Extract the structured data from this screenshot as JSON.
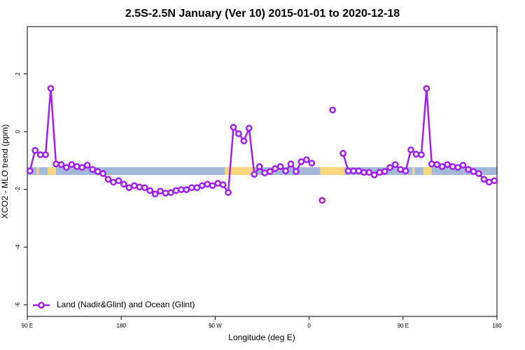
{
  "chart_data": {
    "type": "line",
    "title": "2.5S-2.5N January (Ver 10)   2015-01-01 to 2020-12-18",
    "x_label": "Longitude (deg E)",
    "y_label": "XCO2 - MLO trend (ppm)",
    "xlim": [
      90,
      540
    ],
    "ylim": [
      -6.4,
      3.64
    ],
    "xticks": [
      {
        "value": 90,
        "label": "90 E"
      },
      180,
      {
        "value": 270,
        "label": "90 W"
      },
      {
        "value": 360,
        "label": "0"
      },
      {
        "value": 450,
        "label": "90 E"
      },
      {
        "value": 540,
        "label": "180"
      }
    ],
    "yticks": [
      2,
      0,
      -2,
      -4,
      -6
    ],
    "legend": "bottom-left",
    "band": {
      "y": [
        -1.5,
        -1.23
      ],
      "segments": [
        {
          "x": [
            90,
            540
          ],
          "color": "#a3b8d8"
        },
        {
          "x": [
            99,
            101
          ],
          "color": "#fbd580"
        },
        {
          "x": [
            109.5,
            117.5
          ],
          "color": "#fbd580"
        },
        {
          "x": [
            279,
            307
          ],
          "color": "#fbd580"
        },
        {
          "x": [
            370.5,
            394
          ],
          "color": "#fbd580"
        },
        {
          "x": [
            459,
            461
          ],
          "color": "#fbd580"
        },
        {
          "x": [
            469.5,
            477.5
          ],
          "color": "#fbd580"
        }
      ]
    },
    "x": [
      92.5,
      97.5,
      102.5,
      107.5,
      112.5,
      117.5,
      122.5,
      127.5,
      132.5,
      137.5,
      142.5,
      147.5,
      152.5,
      157.5,
      162.5,
      167.5,
      172.5,
      177.5,
      182.5,
      187.5,
      192.5,
      197.5,
      202.5,
      207.5,
      212.5,
      217.5,
      222.5,
      227.5,
      232.5,
      237.5,
      242.5,
      247.5,
      252.5,
      257.5,
      262.5,
      267.5,
      272.5,
      277.5,
      282.5,
      287.5,
      292.5,
      297.5,
      302.5,
      307.5,
      312.5,
      317.5,
      322.5,
      327.5,
      332.5,
      337.5,
      342.5,
      347.5,
      352.5,
      357.5,
      362.5,
      367.5,
      372.5,
      377.5,
      382.5,
      387.5,
      392.5,
      397.5,
      402.5,
      407.5,
      412.5,
      417.5,
      422.5,
      427.5,
      432.5,
      437.5,
      442.5,
      447.5,
      452.5,
      457.5,
      462.5,
      467.5,
      472.5,
      477.5,
      482.5,
      487.5,
      492.5,
      497.5,
      502.5,
      507.5,
      512.5,
      517.5,
      522.5,
      527.5,
      532.5,
      537.5
    ],
    "series": [
      {
        "name": "Land (Nadir&Glint) and Ocean (Glint)",
        "color": "#a020f0",
        "values": [
          -1.36,
          -0.65,
          -0.8,
          -0.8,
          1.5,
          -1.12,
          -1.14,
          -1.24,
          -1.14,
          -1.21,
          -1.24,
          -1.16,
          -1.31,
          -1.38,
          -1.45,
          -1.65,
          -1.75,
          -1.7,
          -1.82,
          -1.94,
          -1.87,
          -1.92,
          -1.94,
          -2.04,
          -2.16,
          -2.06,
          -2.13,
          -2.11,
          -2.04,
          -2.01,
          -2.01,
          -1.94,
          -1.94,
          -1.87,
          -1.82,
          -1.87,
          -1.79,
          -1.84,
          -2.11,
          0.15,
          -0.07,
          -0.32,
          0.12,
          -1.48,
          -1.21,
          -1.43,
          -1.38,
          -1.28,
          -1.21,
          -1.36,
          -1.12,
          -1.38,
          -1.04,
          -0.97,
          -1.09,
          null,
          -2.38,
          null,
          0.75,
          null,
          -0.75,
          -1.36,
          -1.36,
          -1.36,
          -1.41,
          -1.41,
          -1.5,
          -1.41,
          -1.38,
          -1.24,
          -1.14,
          -1.31,
          -1.36,
          -0.63,
          -0.78,
          -0.8,
          1.5,
          -1.12,
          -1.14,
          -1.21,
          -1.14,
          -1.21,
          -1.24,
          -1.16,
          -1.31,
          -1.38,
          -1.45,
          -1.65,
          -1.75,
          -1.7
        ]
      }
    ]
  }
}
